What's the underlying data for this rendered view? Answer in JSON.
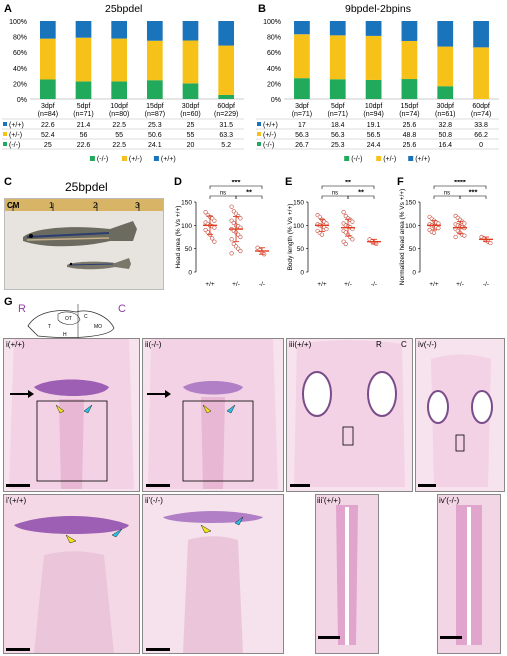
{
  "colors": {
    "wt": "#1a74bb",
    "het": "#f6c219",
    "mut": "#21aa5b",
    "err": "#e23c20",
    "dot": "#c24a3a",
    "tissue_bg": "#f5dbe8",
    "tissue_dark": "#9d5fb4"
  },
  "panels": {
    "A": {
      "letter": "A",
      "title": "25bpdel"
    },
    "B": {
      "letter": "B",
      "title": "9bpdel-2bpins"
    },
    "C": {
      "letter": "C",
      "title": "25bpdel",
      "ruler_unit": "CM",
      "ruler_ticks": [
        "1",
        "2",
        "3"
      ]
    },
    "D": {
      "letter": "D"
    },
    "E": {
      "letter": "E"
    },
    "F": {
      "letter": "F"
    },
    "G": {
      "letter": "G",
      "rostral": "R",
      "caudal": "C",
      "brain_regions": [
        "OT",
        "T",
        "H",
        "MO",
        "C"
      ],
      "sublabels": [
        "i(+/+)",
        "ii(-/-)",
        "iii(+/+)",
        "iv(-/-)",
        "i'(+/+)",
        "ii'(-/-)",
        "iii'(+/+)",
        "iv'(-/-)"
      ],
      "inset_R": "R",
      "inset_C": "C"
    }
  },
  "chart_data": [
    {
      "type": "bar",
      "stacked": true,
      "panel": "A",
      "title": "25bpdel",
      "categories": [
        "3dpf\n(n=84)",
        "5dpf\n(n=71)",
        "10dpf\n(n=80)",
        "15dpf\n(n=87)",
        "30dpf\n(n=60)",
        "60dpf\n(n=229)"
      ],
      "ylim": [
        0,
        100
      ],
      "yticks": [
        "0%",
        "20%",
        "40%",
        "60%",
        "80%",
        "100%"
      ],
      "series": [
        {
          "name": "(+/+)",
          "values": [
            22.6,
            21.4,
            22.5,
            25.3,
            25,
            31.5
          ]
        },
        {
          "name": "(+/-)",
          "values": [
            52.4,
            56,
            55,
            50.6,
            55,
            63.3
          ]
        },
        {
          "name": "(-/-)",
          "values": [
            25,
            22.6,
            22.5,
            24.1,
            20,
            5.2
          ]
        }
      ],
      "legend": [
        "(-/-)",
        "(+/-)",
        "(+/+)"
      ]
    },
    {
      "type": "bar",
      "stacked": true,
      "panel": "B",
      "title": "9bpdel-2bpins",
      "categories": [
        "3dpf\n(n=71)",
        "5dpf\n(n=71)",
        "10dpf\n(n=94)",
        "15dpf\n(n=74)",
        "30dpf\n(n=61)",
        "60dpf\n(n=74)"
      ],
      "ylim": [
        0,
        100
      ],
      "yticks": [
        "0%",
        "20%",
        "40%",
        "60%",
        "80%",
        "100%"
      ],
      "series": [
        {
          "name": "(+/+)",
          "values": [
            17,
            18.4,
            19.1,
            25.6,
            32.8,
            33.8
          ]
        },
        {
          "name": "(+/-)",
          "values": [
            56.3,
            56.3,
            56.5,
            48.8,
            50.8,
            66.2
          ]
        },
        {
          "name": "(-/-)",
          "values": [
            26.7,
            25.3,
            24.4,
            25.6,
            16.4,
            0
          ]
        }
      ],
      "legend": [
        "(-/-)",
        "(+/-)",
        "(+/+)"
      ]
    },
    {
      "type": "scatter",
      "panel": "D",
      "ylabel": "Head area (% Vs +/+)",
      "categories": [
        "+/+",
        "+/-",
        "-/-"
      ],
      "ylim": [
        0,
        150
      ],
      "yticks": [
        "0",
        "50",
        "100",
        "150"
      ],
      "means": [
        100,
        92,
        45
      ],
      "sd": [
        20,
        27,
        7
      ],
      "points": [
        [
          128,
          122,
          118,
          115,
          110,
          106,
          103,
          100,
          98,
          95,
          90,
          85,
          80,
          72,
          65
        ],
        [
          140,
          130,
          125,
          120,
          115,
          110,
          105,
          100,
          98,
          95,
          92,
          88,
          85,
          80,
          75,
          70,
          60,
          55,
          50,
          45,
          40
        ],
        [
          52,
          47,
          42,
          38
        ]
      ],
      "significance": [
        {
          "pair": [
            "+/+",
            "-/-"
          ],
          "label": "***"
        },
        {
          "pair": [
            "+/-",
            "-/-"
          ],
          "label": "**"
        },
        {
          "pair": [
            "+/+",
            "+/-"
          ],
          "label": "ns"
        }
      ]
    },
    {
      "type": "scatter",
      "panel": "E",
      "ylabel": "Body length (% Vs +/+)",
      "categories": [
        "+/+",
        "+/-",
        "-/-"
      ],
      "ylim": [
        0,
        150
      ],
      "yticks": [
        "0",
        "50",
        "100",
        "150"
      ],
      "means": [
        100,
        95,
        65
      ],
      "sd": [
        13,
        18,
        5
      ],
      "points": [
        [
          122,
          118,
          112,
          108,
          104,
          102,
          100,
          98,
          96,
          92,
          88,
          84,
          80
        ],
        [
          128,
          120,
          115,
          112,
          108,
          104,
          100,
          98,
          96,
          92,
          88,
          85,
          80,
          75,
          70,
          65,
          60
        ],
        [
          70,
          66,
          63,
          60
        ]
      ],
      "significance": [
        {
          "pair": [
            "+/+",
            "-/-"
          ],
          "label": "**"
        },
        {
          "pair": [
            "+/-",
            "-/-"
          ],
          "label": "**"
        },
        {
          "pair": [
            "+/+",
            "+/-"
          ],
          "label": "ns"
        }
      ]
    },
    {
      "type": "scatter",
      "panel": "F",
      "ylabel": "Normalized head area (% Vs +/+)",
      "categories": [
        "+/+",
        "+/-",
        "-/-"
      ],
      "ylim": [
        0,
        150
      ],
      "yticks": [
        "0",
        "50",
        "100",
        "150"
      ],
      "means": [
        100,
        95,
        70
      ],
      "sd": [
        10,
        13,
        5
      ],
      "points": [
        [
          118,
          114,
          110,
          106,
          104,
          102,
          100,
          98,
          96,
          94,
          90,
          86,
          84
        ],
        [
          120,
          116,
          112,
          108,
          104,
          102,
          100,
          98,
          96,
          94,
          92,
          88,
          84,
          80,
          78,
          75
        ],
        [
          75,
          72,
          68,
          65,
          62
        ]
      ],
      "significance": [
        {
          "pair": [
            "+/+",
            "-/-"
          ],
          "label": "****"
        },
        {
          "pair": [
            "+/-",
            "-/-"
          ],
          "label": "***"
        },
        {
          "pair": [
            "+/+",
            "+/-"
          ],
          "label": "ns"
        }
      ]
    }
  ]
}
